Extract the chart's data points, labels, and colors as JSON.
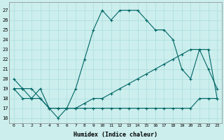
{
  "xlabel": "Humidex (Indice chaleur)",
  "bg_color": "#cceeed",
  "line_color": "#006666",
  "grid_color": "#aadddc",
  "xlim": [
    -0.5,
    23.5
  ],
  "ylim": [
    15.5,
    27.8
  ],
  "yticks": [
    16,
    17,
    18,
    19,
    20,
    21,
    22,
    23,
    24,
    25,
    26,
    27
  ],
  "xticks": [
    0,
    1,
    2,
    3,
    4,
    5,
    6,
    7,
    8,
    9,
    10,
    11,
    12,
    13,
    14,
    15,
    16,
    17,
    18,
    19,
    20,
    21,
    22,
    23
  ],
  "hours": [
    0,
    1,
    2,
    3,
    4,
    5,
    6,
    7,
    8,
    9,
    10,
    11,
    12,
    13,
    14,
    15,
    16,
    17,
    18,
    19,
    20,
    21,
    22,
    23
  ],
  "line1": [
    20,
    19,
    19,
    18,
    17,
    16,
    17,
    19,
    22,
    25,
    27,
    26,
    27,
    27,
    27,
    26,
    25,
    25,
    24,
    21,
    20,
    23,
    21,
    19
  ],
  "line2": [
    19,
    19,
    18,
    19,
    17,
    17,
    17,
    17,
    17.5,
    18,
    18,
    18.5,
    19,
    19.5,
    20,
    20.5,
    21,
    21.5,
    22,
    22.5,
    23,
    23,
    23,
    18
  ],
  "line3": [
    19,
    18,
    18,
    18,
    17,
    17,
    17,
    17,
    17,
    17,
    17,
    17,
    17,
    17,
    17,
    17,
    17,
    17,
    17,
    17,
    17,
    18,
    18,
    18
  ]
}
